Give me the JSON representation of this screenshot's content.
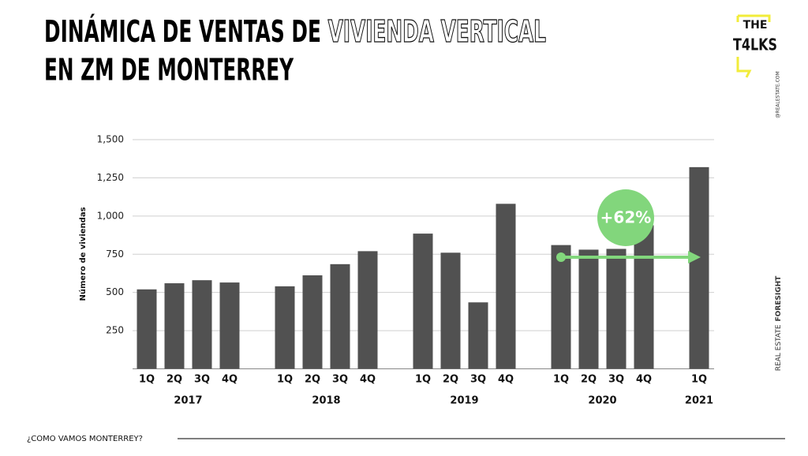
{
  "header": {
    "title_line1": "DINÁMICA DE VENTAS DE ",
    "title_highlight": "VIVIENDA VERTICAL",
    "title_line2": "EN ZM DE MONTERREY"
  },
  "branding": {
    "logo_top": "THE",
    "logo_main": "T4LKS",
    "handle": "@REALESTATE.COM",
    "brand_light": "REAL ESTATE",
    "brand_bold": "FORESIGHT"
  },
  "footer": {
    "text": "¿COMO VAMOS MONTERREY?"
  },
  "chart_data": {
    "type": "bar",
    "y_label": "Número de viviendas",
    "color": "#515151",
    "grid": true,
    "ylim": [
      0,
      1500
    ],
    "yticks": [
      250,
      500,
      750,
      {
        "value": 1000,
        "label": "1,000"
      },
      {
        "value": 1250,
        "label": "1,250"
      },
      {
        "value": 1500,
        "label": "1,500"
      }
    ],
    "groups": [
      {
        "name": "2017",
        "categories": [
          "1Q",
          "2Q",
          "3Q",
          "4Q"
        ],
        "values": [
          520,
          560,
          580,
          565
        ]
      },
      {
        "name": "2018",
        "categories": [
          "1Q",
          "2Q",
          "3Q",
          "4Q"
        ],
        "values": [
          540,
          612,
          685,
          770
        ]
      },
      {
        "name": "2019",
        "categories": [
          "1Q",
          "2Q",
          "3Q",
          "4Q"
        ],
        "values": [
          885,
          760,
          435,
          1080
        ]
      },
      {
        "name": "2020",
        "categories": [
          "1Q",
          "2Q",
          "3Q",
          "4Q"
        ],
        "values": [
          810,
          780,
          785,
          940
        ]
      },
      {
        "name": "2021",
        "categories": [
          "1Q"
        ],
        "values": [
          1320
        ]
      }
    ],
    "annotation": {
      "text": "+62%",
      "color": "#82d67c"
    }
  }
}
